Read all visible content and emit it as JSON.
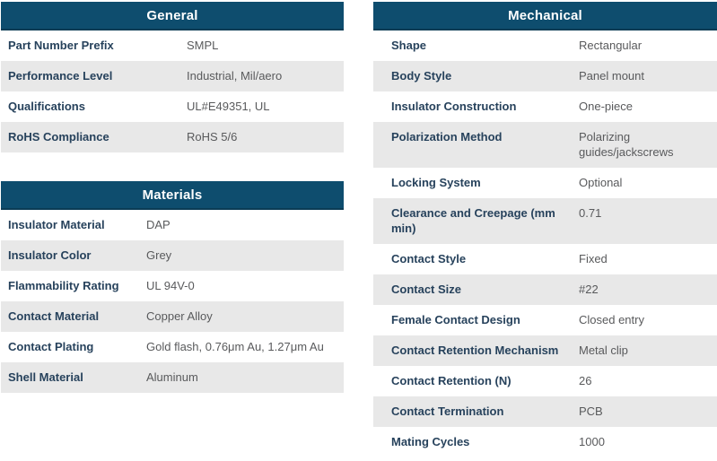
{
  "colors": {
    "header_bg": "#0e4d6e",
    "header_border": "#0b3c55",
    "header_text": "#ffffff",
    "label_text": "#27425c",
    "value_text": "#595a5c",
    "stripe_bg": "#e8e8e8",
    "row_bg": "#ffffff"
  },
  "tables": {
    "general": {
      "title": "General",
      "rows": [
        {
          "label": "Part Number Prefix",
          "value": "SMPL"
        },
        {
          "label": "Performance Level",
          "value": "Industrial, Mil/aero"
        },
        {
          "label": "Qualifications",
          "value": "UL#E49351, UL"
        },
        {
          "label": "RoHS Compliance",
          "value": "RoHS 5/6"
        }
      ]
    },
    "materials": {
      "title": "Materials",
      "rows": [
        {
          "label": "Insulator Material",
          "value": "DAP"
        },
        {
          "label": "Insulator Color",
          "value": "Grey"
        },
        {
          "label": "Flammability Rating",
          "value": "UL 94V-0"
        },
        {
          "label": "Contact Material",
          "value": "Copper Alloy"
        },
        {
          "label": "Contact Plating",
          "value": "Gold flash, 0.76μm Au, 1.27μm Au"
        },
        {
          "label": "Shell Material",
          "value": "Aluminum"
        }
      ]
    },
    "mechanical": {
      "title": "Mechanical",
      "rows": [
        {
          "label": "Shape",
          "value": "Rectangular"
        },
        {
          "label": "Body Style",
          "value": "Panel mount"
        },
        {
          "label": "Insulator Construction",
          "value": "One-piece"
        },
        {
          "label": "Polarization Method",
          "value": "Polarizing guides/jackscrews"
        },
        {
          "label": "Locking System",
          "value": "Optional"
        },
        {
          "label": "Clearance and Creepage (mm min)",
          "value": "0.71"
        },
        {
          "label": "Contact Style",
          "value": "Fixed"
        },
        {
          "label": "Contact Size",
          "value": "#22"
        },
        {
          "label": "Female Contact Design",
          "value": "Closed entry"
        },
        {
          "label": "Contact Retention Mechanism",
          "value": "Metal clip"
        },
        {
          "label": "Contact Retention (N)",
          "value": "26"
        },
        {
          "label": "Contact Termination",
          "value": "PCB"
        },
        {
          "label": "Mating Cycles",
          "value": "1000"
        }
      ]
    }
  }
}
